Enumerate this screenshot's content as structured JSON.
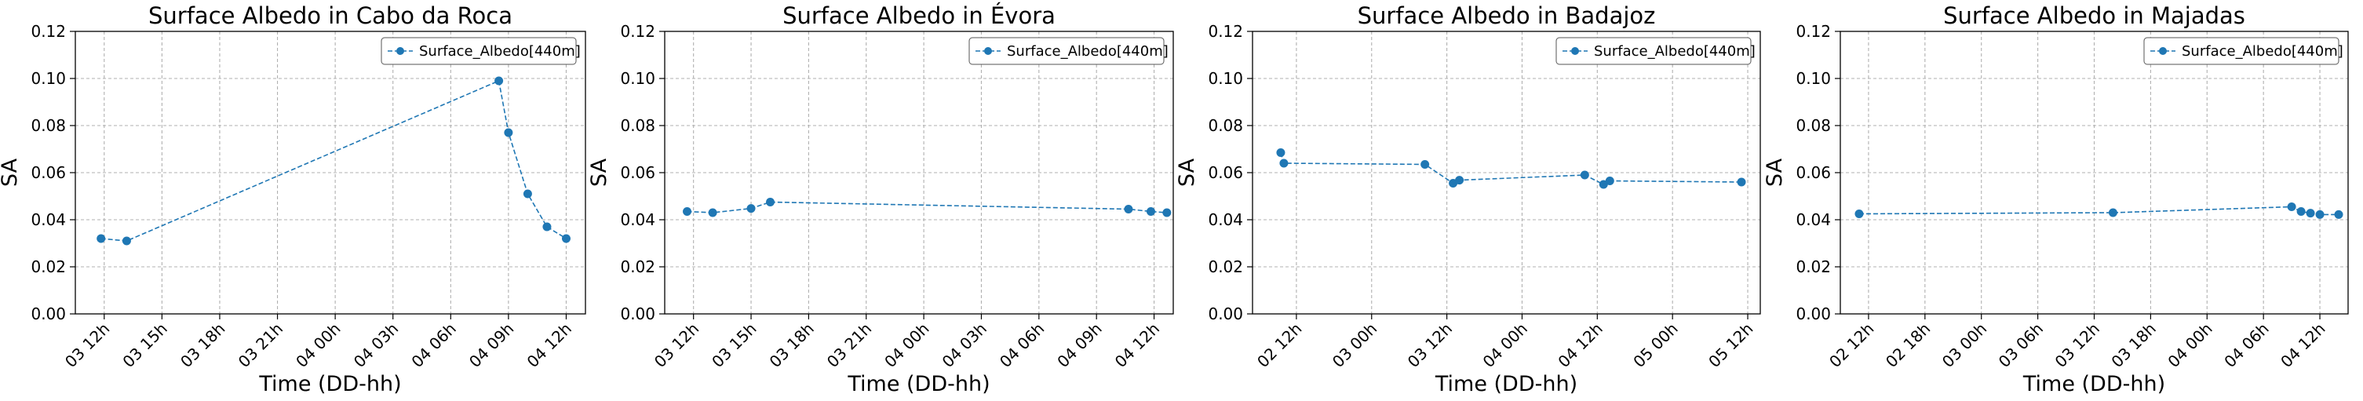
{
  "chart_data": [
    {
      "type": "line",
      "title": "Surface Albedo in Cabo da Roca",
      "xlabel": "Time (DD-hh)",
      "ylabel": "SA",
      "ylim": [
        0,
        0.12
      ],
      "yticks": [
        "0.00",
        "0.02",
        "0.04",
        "0.06",
        "0.08",
        "0.10",
        "0.12"
      ],
      "xlim": [
        "03 10:30",
        "04 13:00"
      ],
      "xticks": [
        {
          "t": "03 12:00",
          "label": "03 12h"
        },
        {
          "t": "03 15:00",
          "label": "03 15h"
        },
        {
          "t": "03 18:00",
          "label": "03 18h"
        },
        {
          "t": "03 21:00",
          "label": "03 21h"
        },
        {
          "t": "04 00:00",
          "label": "04 00h"
        },
        {
          "t": "04 03:00",
          "label": "04 03h"
        },
        {
          "t": "04 06:00",
          "label": "04 06h"
        },
        {
          "t": "04 09:00",
          "label": "04 09h"
        },
        {
          "t": "04 12:00",
          "label": "04 12h"
        }
      ],
      "grid": true,
      "legend": "top-right",
      "series": [
        {
          "name": "Surface_Albedo[440m]",
          "color": "#1f77b4",
          "points": [
            {
              "t": "03 11:50",
              "y": 0.032
            },
            {
              "t": "03 13:10",
              "y": 0.031
            },
            {
              "t": "04 08:30",
              "y": 0.099
            },
            {
              "t": "04 09:00",
              "y": 0.077
            },
            {
              "t": "04 10:00",
              "y": 0.051
            },
            {
              "t": "04 11:00",
              "y": 0.037
            },
            {
              "t": "04 12:00",
              "y": 0.032
            }
          ]
        }
      ]
    },
    {
      "type": "line",
      "title": "Surface Albedo in Évora",
      "xlabel": "Time (DD-hh)",
      "ylabel": "SA",
      "ylim": [
        0,
        0.12
      ],
      "yticks": [
        "0.00",
        "0.02",
        "0.04",
        "0.06",
        "0.08",
        "0.10",
        "0.12"
      ],
      "xlim": [
        "03 10:30",
        "04 13:00"
      ],
      "xticks": [
        {
          "t": "03 12:00",
          "label": "03 12h"
        },
        {
          "t": "03 15:00",
          "label": "03 15h"
        },
        {
          "t": "03 18:00",
          "label": "03 18h"
        },
        {
          "t": "03 21:00",
          "label": "03 21h"
        },
        {
          "t": "04 00:00",
          "label": "04 00h"
        },
        {
          "t": "04 03:00",
          "label": "04 03h"
        },
        {
          "t": "04 06:00",
          "label": "04 06h"
        },
        {
          "t": "04 09:00",
          "label": "04 09h"
        },
        {
          "t": "04 12:00",
          "label": "04 12h"
        }
      ],
      "grid": true,
      "legend": "top-right",
      "series": [
        {
          "name": "Surface_Albedo[440m]",
          "color": "#1f77b4",
          "points": [
            {
              "t": "03 11:40",
              "y": 0.0435
            },
            {
              "t": "03 13:00",
              "y": 0.043
            },
            {
              "t": "03 15:00",
              "y": 0.0448
            },
            {
              "t": "03 16:00",
              "y": 0.0475
            },
            {
              "t": "04 10:40",
              "y": 0.0445
            },
            {
              "t": "04 11:50",
              "y": 0.0435
            },
            {
              "t": "04 12:40",
              "y": 0.043
            }
          ]
        }
      ]
    },
    {
      "type": "line",
      "title": "Surface Albedo in Badajoz",
      "xlabel": "Time (DD-hh)",
      "ylabel": "SA",
      "ylim": [
        0,
        0.12
      ],
      "yticks": [
        "0.00",
        "0.02",
        "0.04",
        "0.06",
        "0.08",
        "0.10",
        "0.12"
      ],
      "xlim": [
        "02 05:00",
        "05 14:00"
      ],
      "xticks": [
        {
          "t": "02 12:00",
          "label": "02 12h"
        },
        {
          "t": "03 00:00",
          "label": "03 00h"
        },
        {
          "t": "03 12:00",
          "label": "03 12h"
        },
        {
          "t": "04 00:00",
          "label": "04 00h"
        },
        {
          "t": "04 12:00",
          "label": "04 12h"
        },
        {
          "t": "05 00:00",
          "label": "05 00h"
        },
        {
          "t": "05 12:00",
          "label": "05 12h"
        }
      ],
      "grid": true,
      "legend": "top-right",
      "series": [
        {
          "name": "Surface_Albedo[440m]",
          "color": "#1f77b4",
          "points": [
            {
              "t": "02 09:30",
              "y": 0.0685
            },
            {
              "t": "02 10:00",
              "y": 0.064
            },
            {
              "t": "03 08:30",
              "y": 0.0635
            },
            {
              "t": "03 13:00",
              "y": 0.0555
            },
            {
              "t": "03 14:00",
              "y": 0.0568
            },
            {
              "t": "04 10:00",
              "y": 0.059
            },
            {
              "t": "04 13:00",
              "y": 0.055
            },
            {
              "t": "04 14:00",
              "y": 0.0565
            },
            {
              "t": "05 11:00",
              "y": 0.056
            }
          ]
        }
      ]
    },
    {
      "type": "line",
      "title": "Surface Albedo in Majadas",
      "xlabel": "Time (DD-hh)",
      "ylabel": "SA",
      "ylim": [
        0,
        0.12
      ],
      "yticks": [
        "0.00",
        "0.02",
        "0.04",
        "0.06",
        "0.08",
        "0.10",
        "0.12"
      ],
      "xlim": [
        "02 09:00",
        "04 15:00"
      ],
      "xticks": [
        {
          "t": "02 12:00",
          "label": "02 12h"
        },
        {
          "t": "02 18:00",
          "label": "02 18h"
        },
        {
          "t": "03 00:00",
          "label": "03 00h"
        },
        {
          "t": "03 06:00",
          "label": "03 06h"
        },
        {
          "t": "03 12:00",
          "label": "03 12h"
        },
        {
          "t": "03 18:00",
          "label": "03 18h"
        },
        {
          "t": "04 00:00",
          "label": "04 00h"
        },
        {
          "t": "04 06:00",
          "label": "04 06h"
        },
        {
          "t": "04 12:00",
          "label": "04 12h"
        }
      ],
      "grid": true,
      "legend": "top-right",
      "series": [
        {
          "name": "Surface_Albedo[440m]",
          "color": "#1f77b4",
          "points": [
            {
              "t": "02 11:00",
              "y": 0.0425
            },
            {
              "t": "03 14:00",
              "y": 0.043
            },
            {
              "t": "04 09:00",
              "y": 0.0455
            },
            {
              "t": "04 10:00",
              "y": 0.0435
            },
            {
              "t": "04 11:00",
              "y": 0.0428
            },
            {
              "t": "04 12:00",
              "y": 0.0422
            },
            {
              "t": "04 14:00",
              "y": 0.0422
            }
          ]
        }
      ]
    }
  ]
}
